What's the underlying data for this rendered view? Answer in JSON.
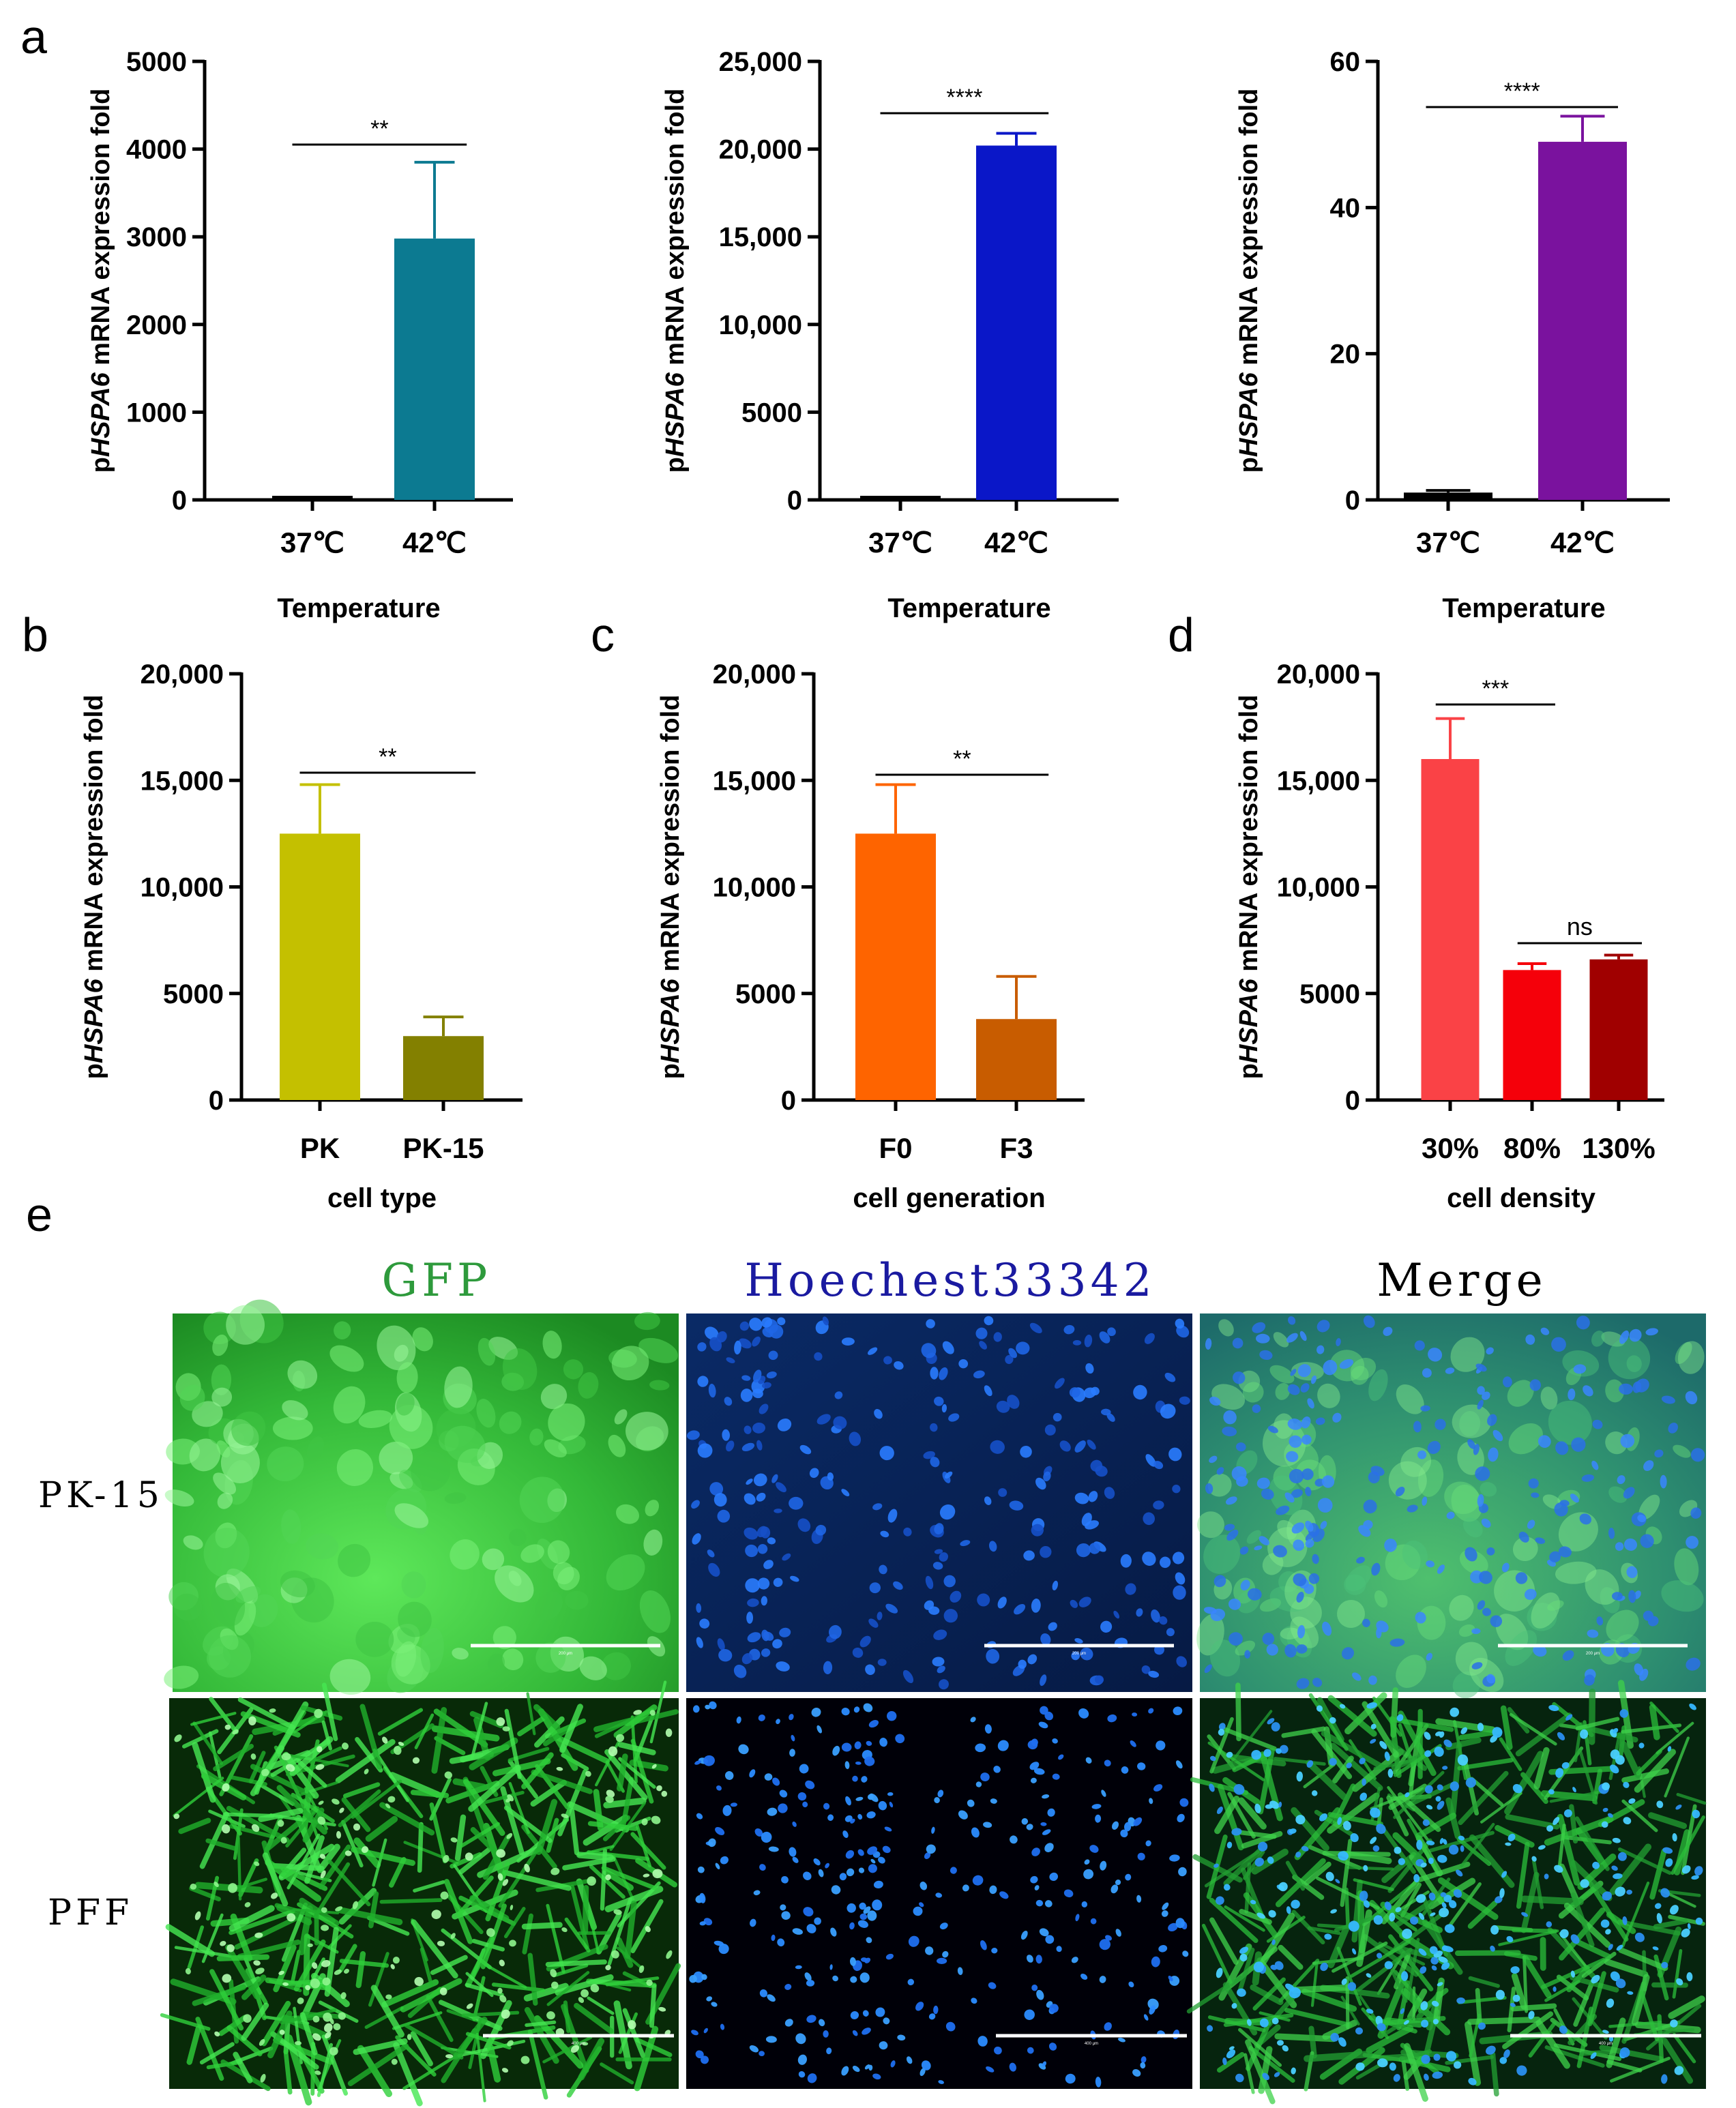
{
  "panel_labels": {
    "a": "a",
    "b": "b",
    "c": "c",
    "d": "d",
    "e": "e"
  },
  "y_label": {
    "prefix": "p",
    "gene": "HSPA6",
    "suffix": " mRNA expression fold"
  },
  "chart_data": [
    {
      "id": "a1",
      "type": "bar",
      "title": "",
      "xlabel": "Temperature",
      "categories": [
        "37℃",
        "42℃"
      ],
      "values": [
        1,
        2980
      ],
      "errors": [
        0,
        870
      ],
      "colors": [
        "#000000",
        "#0c7a91"
      ],
      "ylim": [
        0,
        5000
      ],
      "yticks": [
        0,
        1000,
        2000,
        3000,
        4000,
        5000
      ],
      "ytick_labels": [
        "0",
        "1000",
        "2000",
        "3000",
        "4000",
        "5000"
      ],
      "significance": [
        {
          "from": 0,
          "to": 1,
          "label": "**"
        }
      ]
    },
    {
      "id": "a2",
      "type": "bar",
      "title": "",
      "xlabel": "Temperature",
      "categories": [
        "37℃",
        "42℃"
      ],
      "values": [
        1,
        20200
      ],
      "errors": [
        0,
        700
      ],
      "colors": [
        "#000000",
        "#0a17c8"
      ],
      "ylim": [
        0,
        25000
      ],
      "yticks": [
        0,
        5000,
        10000,
        15000,
        20000,
        25000
      ],
      "ytick_labels": [
        "0",
        "5000",
        "10,000",
        "15,000",
        "20,000",
        "25,000"
      ],
      "significance": [
        {
          "from": 0,
          "to": 1,
          "label": "****"
        }
      ]
    },
    {
      "id": "a3",
      "type": "bar",
      "title": "",
      "xlabel": "Temperature",
      "categories": [
        "37℃",
        "42℃"
      ],
      "values": [
        1,
        49
      ],
      "errors": [
        0.3,
        3.5
      ],
      "colors": [
        "#000000",
        "#7a129e"
      ],
      "ylim": [
        0,
        60
      ],
      "yticks": [
        0,
        20,
        40,
        60
      ],
      "ytick_labels": [
        "0",
        "20",
        "40",
        "60"
      ],
      "significance": [
        {
          "from": 0,
          "to": 1,
          "label": "****"
        }
      ]
    },
    {
      "id": "b",
      "type": "bar",
      "title": "",
      "xlabel": "cell type",
      "categories": [
        "PK",
        "PK-15"
      ],
      "values": [
        12500,
        3000
      ],
      "errors": [
        2300,
        900
      ],
      "colors": [
        "#c4c000",
        "#838000"
      ],
      "ylim": [
        0,
        20000
      ],
      "yticks": [
        0,
        5000,
        10000,
        15000,
        20000
      ],
      "ytick_labels": [
        "0",
        "5000",
        "10,000",
        "15,000",
        "20,000"
      ],
      "significance": [
        {
          "from": 0,
          "to": 1,
          "label": "**"
        }
      ]
    },
    {
      "id": "c",
      "type": "bar",
      "title": "",
      "xlabel": "cell generation",
      "categories": [
        "F0",
        "F3"
      ],
      "values": [
        12500,
        3800
      ],
      "errors": [
        2300,
        2000
      ],
      "colors": [
        "#fe6400",
        "#c85c00"
      ],
      "ylim": [
        0,
        20000
      ],
      "yticks": [
        0,
        5000,
        10000,
        15000,
        20000
      ],
      "ytick_labels": [
        "0",
        "5000",
        "10,000",
        "15,000",
        "20,000"
      ],
      "significance": [
        {
          "from": 0,
          "to": 1,
          "label": "**"
        }
      ]
    },
    {
      "id": "d",
      "type": "bar",
      "title": "",
      "xlabel": "cell density",
      "categories": [
        "30%",
        "80%",
        "130%"
      ],
      "values": [
        16000,
        6100,
        6600
      ],
      "errors": [
        1900,
        300,
        200
      ],
      "colors": [
        "#fa4246",
        "#f5000a",
        "#a00000"
      ],
      "ylim": [
        0,
        20000
      ],
      "yticks": [
        0,
        5000,
        10000,
        15000,
        20000
      ],
      "ytick_labels": [
        "0",
        "5000",
        "10,000",
        "15,000",
        "20,000"
      ],
      "significance": [
        {
          "from": 0,
          "to": 1,
          "label": "***"
        },
        {
          "from": 1,
          "to": 2,
          "label": "ns"
        }
      ]
    }
  ],
  "micrographs": {
    "columns": [
      {
        "title": "GFP",
        "color": "#2e9a3c"
      },
      {
        "title": "Hoechest33342",
        "color": "#1a1aa0"
      },
      {
        "title": "Merge",
        "color": "#000000"
      }
    ],
    "rows": [
      {
        "label": "PK-15",
        "scale_bar": "200 μm"
      },
      {
        "label": "PFF",
        "scale_bar": "400 μm"
      }
    ]
  }
}
